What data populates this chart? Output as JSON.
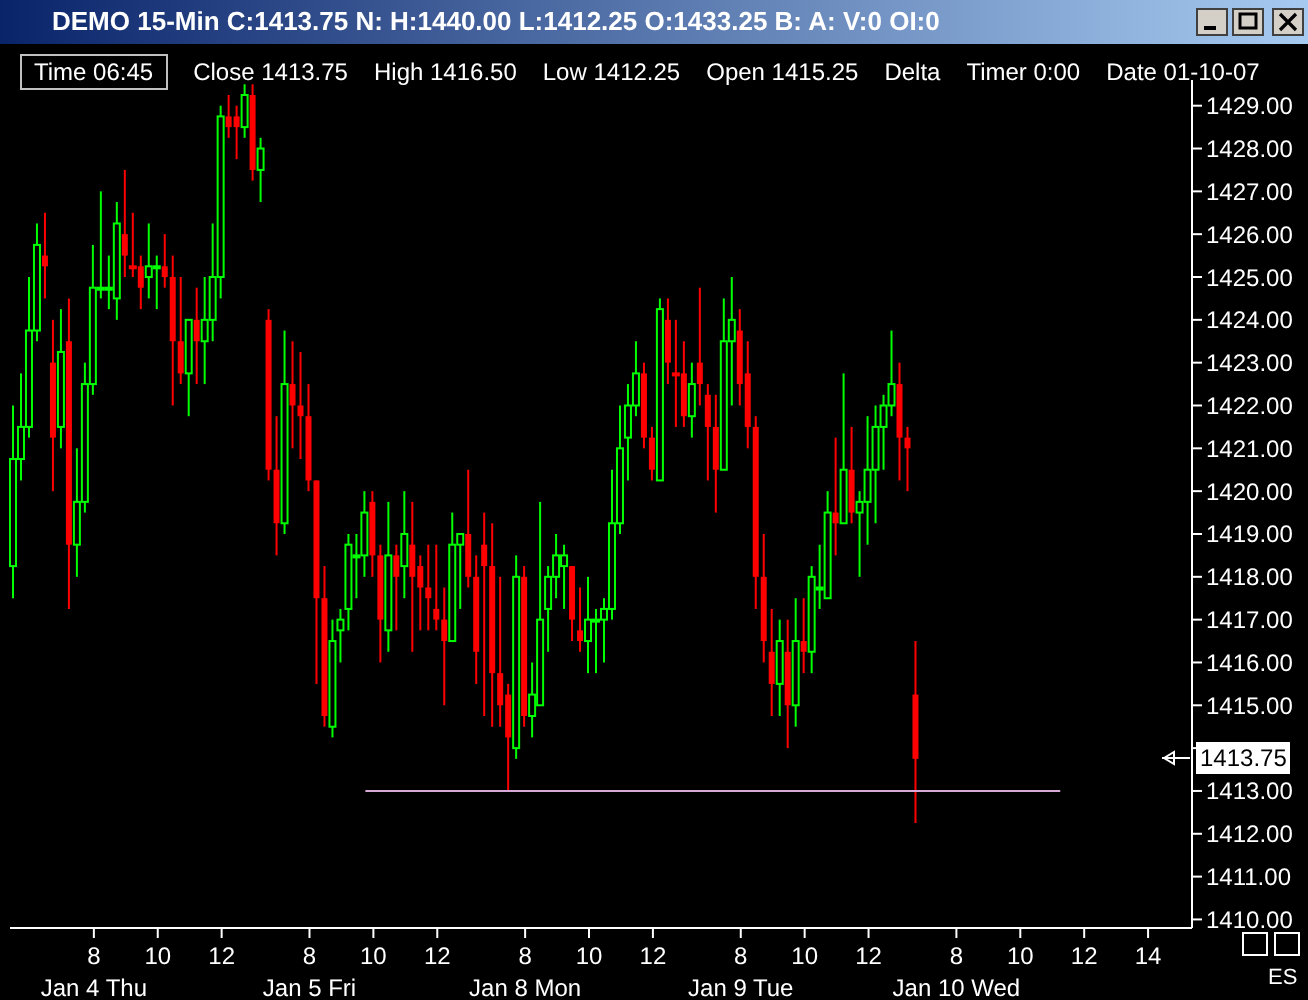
{
  "chart_data": {
    "type": "candlestick",
    "title": "DEMO 15-Min C:1413.75 N: H:1440.00 L:1412.25 O:1433.25 B: A: V:0 OI:0",
    "annotations": [
      "Time 06:45",
      "Close 1413.75",
      "High 1416.50",
      "Low 1412.25",
      "Open 1415.25",
      "Delta",
      "Timer 0:00",
      "Date 01-10-07",
      "1413.75",
      "ES"
    ],
    "categories": [
      null,
      null,
      null,
      null,
      null,
      null,
      null,
      null,
      null,
      null,
      "8\nJan 4 Thu",
      null,
      null,
      null,
      null,
      null,
      null,
      null,
      "10",
      null,
      null,
      null,
      null,
      null,
      null,
      null,
      "12",
      null,
      null,
      null,
      null,
      null,
      null,
      null,
      null,
      null,
      null,
      "8\nJan 5 Fri",
      null,
      null,
      null,
      null,
      null,
      null,
      null,
      "10",
      null,
      null,
      null,
      null,
      null,
      null,
      null,
      "12",
      null,
      null,
      null,
      null,
      null,
      null,
      null,
      null,
      null,
      null,
      "8\nJan 8 Mon",
      null,
      null,
      null,
      null,
      null,
      null,
      null,
      "10",
      null,
      null,
      null,
      null,
      null,
      null,
      null,
      "12",
      null,
      null,
      null,
      null,
      null,
      null,
      null,
      null,
      null,
      null,
      "8\nJan 9 Tue",
      null,
      null,
      null,
      null,
      null,
      null,
      null,
      "10",
      null,
      null,
      null,
      null,
      null,
      null,
      null,
      "12",
      null,
      null,
      null,
      null,
      null,
      null,
      null,
      null,
      null,
      null,
      "8\nJan 10 Wed",
      null,
      null,
      null,
      null,
      null,
      null,
      null,
      "10",
      null,
      null,
      null,
      null,
      null,
      null,
      null,
      "12",
      null,
      null,
      null,
      null,
      null,
      null,
      null,
      "14",
      null,
      null,
      null,
      null,
      null
    ],
    "ohlc": [
      [
        1418.25,
        1422.0,
        1417.5,
        1420.75
      ],
      [
        1420.75,
        1422.75,
        1420.25,
        1421.5
      ],
      [
        1421.5,
        1425.0,
        1421.25,
        1423.75
      ],
      [
        1423.75,
        1426.25,
        1423.5,
        1425.75
      ],
      [
        1425.5,
        1426.5,
        1424.5,
        1425.25
      ],
      [
        1423.0,
        1424.0,
        1420.0,
        1421.25
      ],
      [
        1421.5,
        1424.25,
        1421.0,
        1423.25
      ],
      [
        1423.5,
        1424.5,
        1417.25,
        1418.75
      ],
      [
        1418.75,
        1421.0,
        1418.0,
        1419.75
      ],
      [
        1419.75,
        1423.0,
        1419.5,
        1422.5
      ],
      [
        1422.5,
        1425.75,
        1422.25,
        1424.75
      ],
      [
        1424.75,
        1427.0,
        1424.5,
        1424.75
      ],
      [
        1424.75,
        1425.5,
        1424.25,
        1424.75
      ],
      [
        1424.5,
        1426.75,
        1424.0,
        1426.25
      ],
      [
        1426.0,
        1427.5,
        1425.0,
        1425.5
      ],
      [
        1425.25,
        1426.5,
        1425.0,
        1425.25
      ],
      [
        1425.25,
        1425.5,
        1424.25,
        1424.75
      ],
      [
        1425.0,
        1426.25,
        1424.5,
        1425.25
      ],
      [
        1425.25,
        1425.5,
        1424.25,
        1425.25
      ],
      [
        1425.25,
        1426.0,
        1424.75,
        1425.0
      ],
      [
        1425.0,
        1425.5,
        1422.0,
        1423.5
      ],
      [
        1423.5,
        1425.0,
        1422.5,
        1422.75
      ],
      [
        1422.75,
        1424.0,
        1421.75,
        1424.0
      ],
      [
        1424.0,
        1424.75,
        1422.5,
        1423.5
      ],
      [
        1423.5,
        1425.0,
        1422.5,
        1424.0
      ],
      [
        1424.0,
        1426.25,
        1423.5,
        1425.0
      ],
      [
        1425.0,
        1429.0,
        1424.5,
        1428.75
      ],
      [
        1428.75,
        1429.25,
        1428.25,
        1428.5
      ],
      [
        1428.75,
        1429.0,
        1427.75,
        1428.5
      ],
      [
        1428.5,
        1429.5,
        1428.25,
        1429.25
      ],
      [
        1429.25,
        1429.5,
        1427.25,
        1427.5
      ],
      [
        1427.5,
        1428.25,
        1426.75,
        1428.0
      ],
      [
        1424.0,
        1424.25,
        1420.25,
        1420.5
      ],
      [
        1420.5,
        1421.75,
        1418.5,
        1419.25
      ],
      [
        1419.25,
        1423.75,
        1419.0,
        1422.5
      ],
      [
        1422.5,
        1423.5,
        1421.0,
        1422.0
      ],
      [
        1422.0,
        1423.25,
        1420.75,
        1421.75
      ],
      [
        1421.75,
        1422.5,
        1420.0,
        1420.25
      ],
      [
        1420.25,
        1420.25,
        1415.5,
        1417.5
      ],
      [
        1417.5,
        1418.25,
        1414.5,
        1414.75
      ],
      [
        1414.5,
        1417.0,
        1414.25,
        1416.5
      ],
      [
        1416.75,
        1417.25,
        1416.0,
        1417.0
      ],
      [
        1417.25,
        1419.0,
        1416.75,
        1418.75
      ],
      [
        1418.5,
        1419.0,
        1417.5,
        1418.5
      ],
      [
        1418.5,
        1420.0,
        1418.0,
        1419.5
      ],
      [
        1419.75,
        1420.0,
        1418.0,
        1418.5
      ],
      [
        1418.5,
        1418.75,
        1416.0,
        1417.0
      ],
      [
        1416.75,
        1419.75,
        1416.25,
        1418.5
      ],
      [
        1418.5,
        1418.75,
        1416.75,
        1418.0
      ],
      [
        1418.25,
        1420.0,
        1417.5,
        1419.0
      ],
      [
        1418.75,
        1419.75,
        1416.25,
        1418.0
      ],
      [
        1418.25,
        1418.5,
        1416.75,
        1417.75
      ],
      [
        1417.75,
        1418.75,
        1416.75,
        1417.5
      ],
      [
        1417.25,
        1418.75,
        1416.75,
        1417.0
      ],
      [
        1417.0,
        1417.75,
        1415.0,
        1416.5
      ],
      [
        1416.5,
        1419.5,
        1416.5,
        1418.75
      ],
      [
        1418.75,
        1419.0,
        1417.25,
        1419.0
      ],
      [
        1419.0,
        1420.5,
        1417.75,
        1418.0
      ],
      [
        1418.0,
        1418.5,
        1415.5,
        1416.25
      ],
      [
        1418.75,
        1419.5,
        1414.75,
        1418.25
      ],
      [
        1418.25,
        1419.25,
        1414.5,
        1415.75
      ],
      [
        1415.75,
        1418.0,
        1414.5,
        1415.0
      ],
      [
        1415.25,
        1415.5,
        1413.0,
        1414.25
      ],
      [
        1414.0,
        1418.5,
        1413.75,
        1418.0
      ],
      [
        1418.0,
        1418.25,
        1414.5,
        1414.75
      ],
      [
        1414.75,
        1416.0,
        1414.25,
        1415.25
      ],
      [
        1415.0,
        1419.75,
        1415.0,
        1417.0
      ],
      [
        1417.25,
        1418.25,
        1416.25,
        1418.0
      ],
      [
        1418.0,
        1419.0,
        1417.5,
        1418.5
      ],
      [
        1418.25,
        1418.75,
        1417.25,
        1418.5
      ],
      [
        1418.25,
        1418.25,
        1416.5,
        1417.0
      ],
      [
        1416.75,
        1417.75,
        1416.25,
        1416.5
      ],
      [
        1416.5,
        1418.0,
        1415.75,
        1417.0
      ],
      [
        1417.0,
        1417.25,
        1415.75,
        1417.0
      ],
      [
        1417.0,
        1417.5,
        1416.0,
        1417.25
      ],
      [
        1417.25,
        1420.5,
        1417.0,
        1419.25
      ],
      [
        1419.25,
        1422.0,
        1419.0,
        1421.0
      ],
      [
        1421.25,
        1422.5,
        1420.25,
        1422.0
      ],
      [
        1422.0,
        1423.5,
        1421.75,
        1422.75
      ],
      [
        1422.75,
        1423.0,
        1421.0,
        1421.25
      ],
      [
        1421.25,
        1421.5,
        1420.25,
        1420.5
      ],
      [
        1420.25,
        1424.5,
        1420.25,
        1424.25
      ],
      [
        1424.0,
        1424.5,
        1422.5,
        1423.0
      ],
      [
        1422.75,
        1424.0,
        1421.5,
        1422.75
      ],
      [
        1422.75,
        1423.5,
        1421.5,
        1421.75
      ],
      [
        1421.75,
        1423.0,
        1421.25,
        1422.5
      ],
      [
        1423.0,
        1424.75,
        1422.0,
        1422.5
      ],
      [
        1422.25,
        1422.5,
        1420.25,
        1421.5
      ],
      [
        1421.5,
        1422.25,
        1419.5,
        1420.5
      ],
      [
        1420.5,
        1424.5,
        1420.5,
        1423.5
      ],
      [
        1423.5,
        1425.0,
        1422.0,
        1424.0
      ],
      [
        1423.75,
        1424.25,
        1422.0,
        1422.5
      ],
      [
        1422.75,
        1423.5,
        1421.0,
        1421.5
      ],
      [
        1421.5,
        1421.75,
        1417.25,
        1418.0
      ],
      [
        1418.0,
        1419.0,
        1416.0,
        1416.5
      ],
      [
        1416.25,
        1417.25,
        1414.75,
        1415.5
      ],
      [
        1415.5,
        1417.0,
        1414.75,
        1416.5
      ],
      [
        1416.25,
        1417.0,
        1414.0,
        1415.0
      ],
      [
        1415.0,
        1417.5,
        1414.5,
        1416.5
      ],
      [
        1416.5,
        1417.5,
        1415.75,
        1416.25
      ],
      [
        1416.25,
        1418.25,
        1415.75,
        1418.0
      ],
      [
        1417.75,
        1418.75,
        1417.25,
        1417.75
      ],
      [
        1417.5,
        1420.0,
        1417.5,
        1419.5
      ],
      [
        1419.5,
        1421.25,
        1418.5,
        1419.25
      ],
      [
        1419.25,
        1422.75,
        1419.25,
        1420.5
      ],
      [
        1420.5,
        1421.5,
        1419.25,
        1419.5
      ],
      [
        1419.5,
        1420.0,
        1418.0,
        1419.75
      ],
      [
        1419.75,
        1421.75,
        1418.75,
        1420.5
      ],
      [
        1420.5,
        1422.0,
        1419.25,
        1421.5
      ],
      [
        1421.5,
        1422.25,
        1420.5,
        1422.0
      ],
      [
        1422.0,
        1423.75,
        1421.75,
        1422.5
      ],
      [
        1422.5,
        1423.0,
        1420.25,
        1421.25
      ],
      [
        1421.25,
        1421.5,
        1420.0,
        1421.0
      ],
      [
        1415.25,
        1416.5,
        1412.25,
        1413.75
      ],
      null,
      null,
      null,
      null,
      null,
      null,
      null,
      null,
      null,
      null,
      null,
      null,
      null,
      null,
      null,
      null,
      null,
      null,
      null,
      null,
      null,
      null,
      null,
      null,
      null,
      null,
      null,
      null,
      null,
      null,
      null,
      null,
      null,
      null
    ],
    "colors": [
      "#00ff00",
      "#00ff00",
      "#00ff00",
      "#00ff00",
      "#ff0000",
      "#ff0000",
      "#00ff00",
      "#ff0000",
      "#00ff00",
      "#00ff00",
      "#00ff00",
      "#00ff00",
      "#00ff00",
      "#00ff00",
      "#ff0000",
      "#ff0000",
      "#ff0000",
      "#00ff00",
      "#00ff00",
      "#ff0000",
      "#ff0000",
      "#ff0000",
      "#00ff00",
      "#ff0000",
      "#00ff00",
      "#00ff00",
      "#00ff00",
      "#ff0000",
      "#ff0000",
      "#00ff00",
      "#ff0000",
      "#00ff00",
      "#ff0000",
      "#ff0000",
      "#00ff00",
      "#ff0000",
      "#ff0000",
      "#ff0000",
      "#ff0000",
      "#ff0000",
      "#00ff00",
      "#00ff00",
      "#00ff00",
      "#00ff00",
      "#00ff00",
      "#ff0000",
      "#ff0000",
      "#00ff00",
      "#ff0000",
      "#00ff00",
      "#ff0000",
      "#ff0000",
      "#ff0000",
      "#ff0000",
      "#ff0000",
      "#00ff00",
      "#00ff00",
      "#ff0000",
      "#ff0000",
      "#ff0000",
      "#ff0000",
      "#ff0000",
      "#ff0000",
      "#00ff00",
      "#ff0000",
      "#00ff00",
      "#00ff00",
      "#00ff00",
      "#00ff00",
      "#00ff00",
      "#ff0000",
      "#ff0000",
      "#00ff00",
      "#00ff00",
      "#00ff00",
      "#00ff00",
      "#00ff00",
      "#00ff00",
      "#00ff00",
      "#ff0000",
      "#ff0000",
      "#00ff00",
      "#ff0000",
      "#ff0000",
      "#ff0000",
      "#00ff00",
      "#ff0000",
      "#ff0000",
      "#ff0000",
      "#00ff00",
      "#00ff00",
      "#ff0000",
      "#ff0000",
      "#ff0000",
      "#ff0000",
      "#ff0000",
      "#00ff00",
      "#ff0000",
      "#00ff00",
      "#ff0000",
      "#00ff00",
      "#00ff00",
      "#00ff00",
      "#ff0000",
      "#00ff00",
      "#ff0000",
      "#00ff00",
      "#00ff00",
      "#00ff00",
      "#00ff00",
      "#00ff00",
      "#ff0000",
      "#ff0000",
      "#ff0000",
      null,
      null,
      null,
      null,
      null,
      null,
      null,
      null,
      null,
      null,
      null,
      null,
      null,
      null,
      null,
      null,
      null,
      null,
      null,
      null,
      null,
      null,
      null,
      null,
      null,
      null,
      null,
      null,
      null,
      null,
      null,
      null,
      null,
      null
    ],
    "series": [
      {
        "type": "line",
        "color": "#d8a8d8",
        "values": [
          null,
          null,
          null,
          null,
          null,
          null,
          null,
          null,
          null,
          null,
          null,
          null,
          null,
          null,
          null,
          null,
          null,
          null,
          null,
          null,
          null,
          null,
          null,
          null,
          null,
          null,
          null,
          null,
          null,
          null,
          null,
          null,
          null,
          null,
          null,
          null,
          null,
          null,
          null,
          null,
          null,
          null,
          null,
          null,
          1413,
          1413,
          1413,
          1413,
          1413,
          1413,
          1413,
          1413,
          1413,
          1413,
          1413,
          1413,
          1413,
          1413,
          1413,
          1413,
          1413,
          1413,
          1413,
          1413,
          1413,
          1413,
          1413,
          1413,
          1413,
          1413,
          1413,
          1413,
          1413,
          1413,
          1413,
          1413,
          1413,
          1413,
          1413,
          1413,
          1413,
          1413,
          1413,
          1413,
          1413,
          1413,
          1413,
          1413,
          1413,
          1413,
          1413,
          1413,
          1413,
          1413,
          1413,
          1413,
          1413,
          1413,
          1413,
          1413,
          1413,
          1413,
          1413,
          1413,
          1413,
          1413,
          1413,
          1413,
          1413,
          1413,
          1413,
          1413,
          1413,
          1413,
          1413,
          1413,
          1413,
          1413,
          1413,
          1413,
          1413,
          1413,
          1413,
          1413,
          1413,
          1413,
          1413,
          1413,
          1413,
          1413,
          1413,
          1413,
          null,
          null,
          null,
          null,
          null,
          null,
          null,
          null,
          null,
          null,
          null,
          null,
          null,
          null,
          null,
          null
        ]
      }
    ],
    "ylim": [
      1409.8,
      1429.6
    ],
    "yticks": [
      {
        "value": 1410,
        "label": "1410.00"
      },
      {
        "value": 1411,
        "label": "1411.00"
      },
      {
        "value": 1412,
        "label": "1412.00"
      },
      {
        "value": 1413,
        "label": "1413.00"
      },
      {
        "value": 1414,
        "label": null
      },
      {
        "value": 1415,
        "label": "1415.00"
      },
      {
        "value": 1416,
        "label": "1416.00"
      },
      {
        "value": 1417,
        "label": "1417.00"
      },
      {
        "value": 1418,
        "label": "1418.00"
      },
      {
        "value": 1419,
        "label": "1419.00"
      },
      {
        "value": 1420,
        "label": "1420.00"
      },
      {
        "value": 1421,
        "label": "1421.00"
      },
      {
        "value": 1422,
        "label": "1422.00"
      },
      {
        "value": 1423,
        "label": "1423.00"
      },
      {
        "value": 1424,
        "label": "1424.00"
      },
      {
        "value": 1425,
        "label": "1425.00"
      },
      {
        "value": 1426,
        "label": "1426.00"
      },
      {
        "value": 1427,
        "label": "1427.00"
      },
      {
        "value": 1428,
        "label": "1428.00"
      },
      {
        "value": 1429,
        "label": "1429.00"
      }
    ]
  }
}
